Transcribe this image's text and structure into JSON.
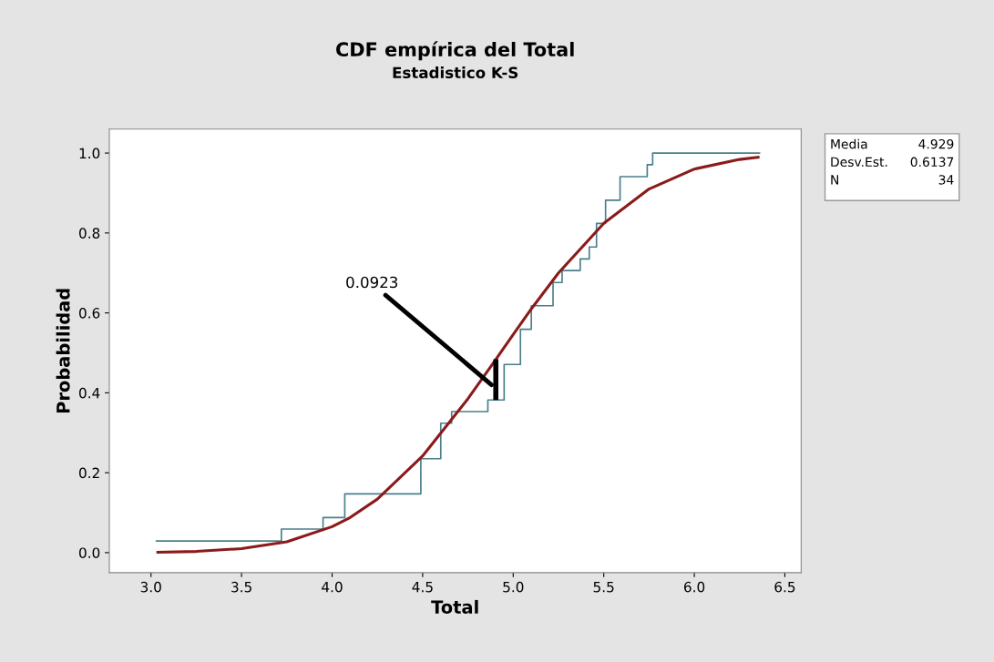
{
  "chart_data": {
    "type": "step",
    "title": "CDF empírica del Total",
    "subtitle": "Estadistico K-S",
    "xlabel": "Total",
    "ylabel": "Probabilidad",
    "xlim": [
      2.77,
      6.59
    ],
    "xticks": [
      {
        "value": 3,
        "label": "3.0"
      },
      3.5,
      {
        "value": 4,
        "label": "4.0"
      },
      4.5,
      {
        "value": 5,
        "label": "5.0"
      },
      5.5,
      {
        "value": 6,
        "label": "6.0"
      },
      6.5
    ],
    "ylim": [
      -0.05,
      1.06
    ],
    "yticks": [
      {
        "value": 0,
        "label": "0.0"
      },
      0.2,
      0.4,
      0.6,
      0.8,
      {
        "value": 1,
        "label": "1.0"
      }
    ],
    "grid": false,
    "series": [
      {
        "color": "#4a7f8a",
        "x": [
          3.03,
          3.72,
          3.95,
          4.07,
          4.49,
          4.6,
          4.66,
          4.86,
          4.95,
          5.04,
          5.1,
          5.22,
          5.27,
          5.37,
          5.42,
          5.46,
          5.51,
          5.59,
          5.74,
          5.77,
          6.36
        ],
        "values": [
          0.029,
          0.059,
          0.088,
          0.147,
          0.235,
          0.324,
          0.353,
          0.382,
          0.471,
          0.559,
          0.618,
          0.676,
          0.706,
          0.735,
          0.765,
          0.824,
          0.882,
          0.941,
          0.971,
          1.0,
          1.0
        ]
      },
      {
        "type": "line",
        "color": "#8b1a1a",
        "x": [
          3.03,
          3.25,
          3.5,
          3.75,
          4.0,
          4.1,
          4.25,
          4.5,
          4.75,
          4.9,
          5.0,
          5.1,
          5.25,
          5.5,
          5.75,
          6.0,
          6.25,
          6.36
        ],
        "values": [
          0.001,
          0.003,
          0.01,
          0.027,
          0.065,
          0.088,
          0.134,
          0.242,
          0.385,
          0.481,
          0.546,
          0.61,
          0.7,
          0.824,
          0.91,
          0.96,
          0.984,
          0.99
        ]
      },
      {
        "type": "line",
        "color": "#000000",
        "x": [
          4.904,
          4.904
        ],
        "values": [
          0.382,
          0.484
        ]
      }
    ],
    "annotations": [
      {
        "text": "0.0923",
        "x": 4.88,
        "y": 0.42
      },
      "Media 4.929",
      "Desv.Est. 0.6137",
      "N 34"
    ]
  }
}
